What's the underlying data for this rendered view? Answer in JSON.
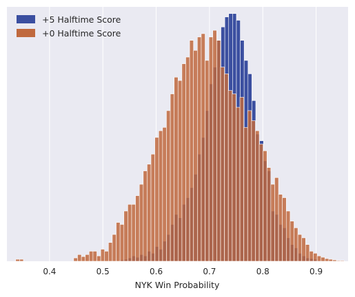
{
  "chart_data": {
    "type": "histogram",
    "title": "",
    "xlabel": "NYK Win Probability",
    "ylabel": "",
    "xlim": [
      0.32,
      0.96
    ],
    "ylim": [
      0,
      380
    ],
    "bin_width": 0.00725,
    "y_ticks_visible": false,
    "grid": true,
    "legend": {
      "placement": "top-left"
    },
    "x_ticks": [
      {
        "value": 0.4,
        "label": "0.4"
      },
      {
        "value": 0.5,
        "label": "0.5"
      },
      {
        "value": 0.6,
        "label": "0.6"
      },
      {
        "value": 0.7,
        "label": "0.7"
      },
      {
        "value": 0.8,
        "label": "0.8"
      },
      {
        "value": 0.9,
        "label": "0.9"
      }
    ],
    "series": [
      {
        "name": "+5 Halftime Score",
        "color": "#3b4fa0",
        "bin_start": 0.475,
        "counts": [
          1,
          0,
          0,
          0,
          0,
          0,
          0,
          0,
          2,
          3,
          5,
          8,
          6,
          10,
          8,
          15,
          12,
          22,
          18,
          30,
          40,
          55,
          70,
          65,
          85,
          95,
          110,
          130,
          160,
          185,
          225,
          265,
          290,
          330,
          350,
          365,
          370,
          370,
          360,
          330,
          300,
          280,
          240,
          190,
          180,
          150,
          135,
          75,
          70,
          55,
          50,
          35,
          25,
          20,
          12,
          8,
          5,
          4,
          3,
          1,
          1,
          0,
          0,
          1
        ]
      },
      {
        "name": "+0 Halftime Score",
        "color": "#c0693e",
        "bin_start": 0.3365,
        "counts": [
          3,
          3,
          0,
          0,
          0,
          0,
          0,
          0,
          0,
          0,
          0,
          0,
          0,
          0,
          0,
          5,
          10,
          7,
          10,
          15,
          15,
          8,
          18,
          15,
          28,
          40,
          58,
          55,
          75,
          85,
          85,
          98,
          115,
          135,
          145,
          160,
          185,
          195,
          200,
          225,
          250,
          275,
          270,
          295,
          305,
          330,
          315,
          335,
          340,
          300,
          335,
          345,
          330,
          290,
          280,
          255,
          250,
          230,
          245,
          200,
          225,
          210,
          195,
          175,
          165,
          140,
          115,
          125,
          100,
          95,
          75,
          60,
          50,
          40,
          35,
          25,
          15,
          12,
          8,
          6,
          4,
          3,
          2,
          1,
          1
        ]
      }
    ]
  }
}
